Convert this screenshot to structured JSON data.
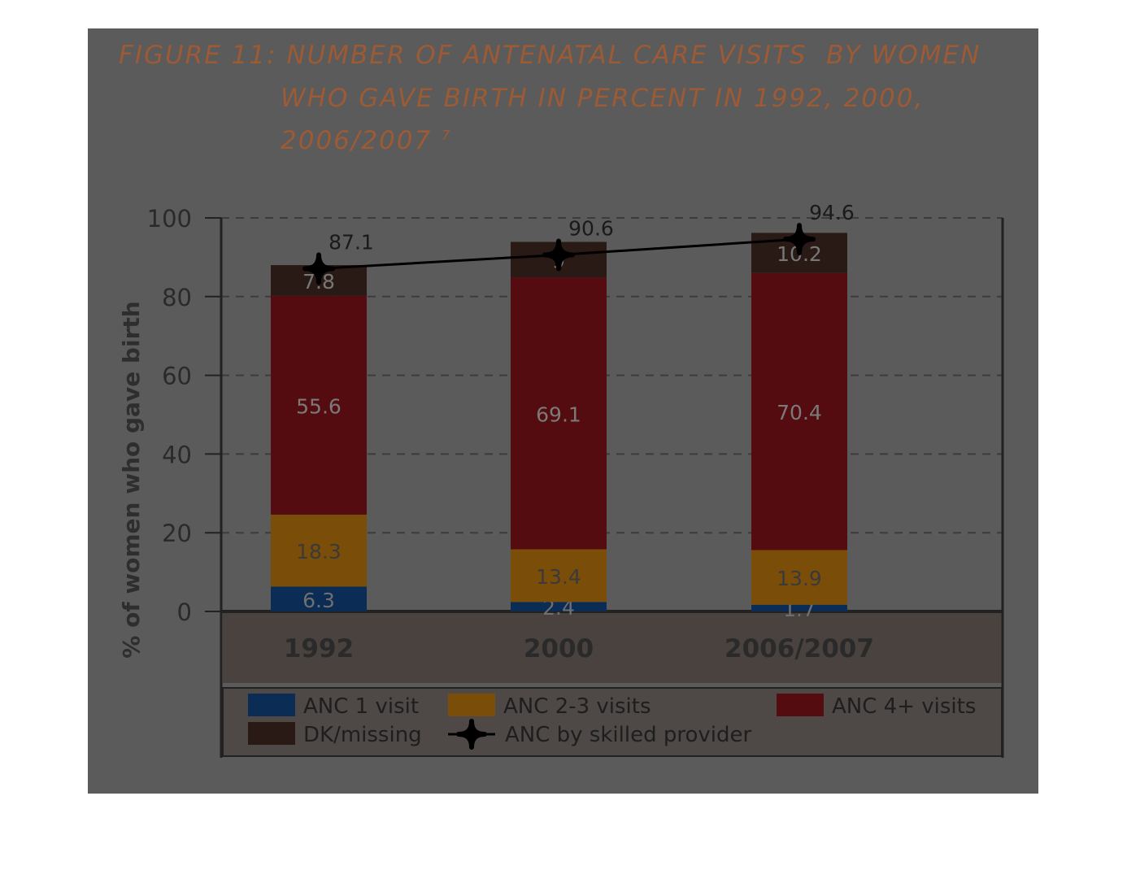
{
  "figure": {
    "title_lines": [
      "FIGURE 11: NUMBER OF ANTENATAL CARE VISITS  BY WOMEN",
      "WHO GAVE BIRTH IN PERCENT IN 1992, 2000,",
      "2006/2007"
    ],
    "footnote_mark": "7"
  },
  "colors": {
    "frame": "#5b5b5b",
    "anc1": "#0b2c55",
    "anc23": "#7a4e08",
    "anc4": "#540c10",
    "dk": "#2a1a15",
    "line": "#000000",
    "category_band": "#4a423e",
    "legend_band": "#4e4846"
  },
  "chart_data": {
    "type": "bar",
    "stacked": true,
    "categories": [
      "1992",
      "2000",
      "2006/2007"
    ],
    "series": [
      {
        "name": "ANC 1 visit",
        "values": [
          6.3,
          2.4,
          1.7
        ],
        "labels": [
          "6.3",
          "2.4",
          "1.7"
        ],
        "color_key": "anc1"
      },
      {
        "name": "ANC 2-3 visits",
        "values": [
          18.3,
          13.4,
          13.9
        ],
        "labels": [
          "18.3",
          "13.4",
          "13.9"
        ],
        "color_key": "anc23"
      },
      {
        "name": "ANC 4+ visits",
        "values": [
          55.6,
          69.1,
          70.4
        ],
        "labels": [
          "55.6",
          "69.1",
          "70.4"
        ],
        "color_key": "anc4"
      },
      {
        "name": "DK/missing",
        "values": [
          7.8,
          9,
          10.2
        ],
        "labels": [
          "7.8",
          "9",
          "10.2"
        ],
        "color_key": "dk"
      }
    ],
    "line_series": {
      "name": "ANC by skilled provider",
      "values": [
        87.1,
        90.6,
        94.6
      ],
      "labels": [
        "87.1",
        "90.6",
        "94.6"
      ]
    },
    "ylabel": "% of women who gave birth",
    "xlabel": "",
    "ylim": [
      0,
      100
    ],
    "yticks": [
      "0",
      "20",
      "40",
      "60",
      "80",
      "100"
    ],
    "grid": true,
    "legend_position": "bottom",
    "legend_order": [
      "ANC 1 visit",
      "ANC 2-3 visits",
      "ANC 4+ visits",
      "DK/missing",
      "ANC by skilled provider"
    ]
  }
}
